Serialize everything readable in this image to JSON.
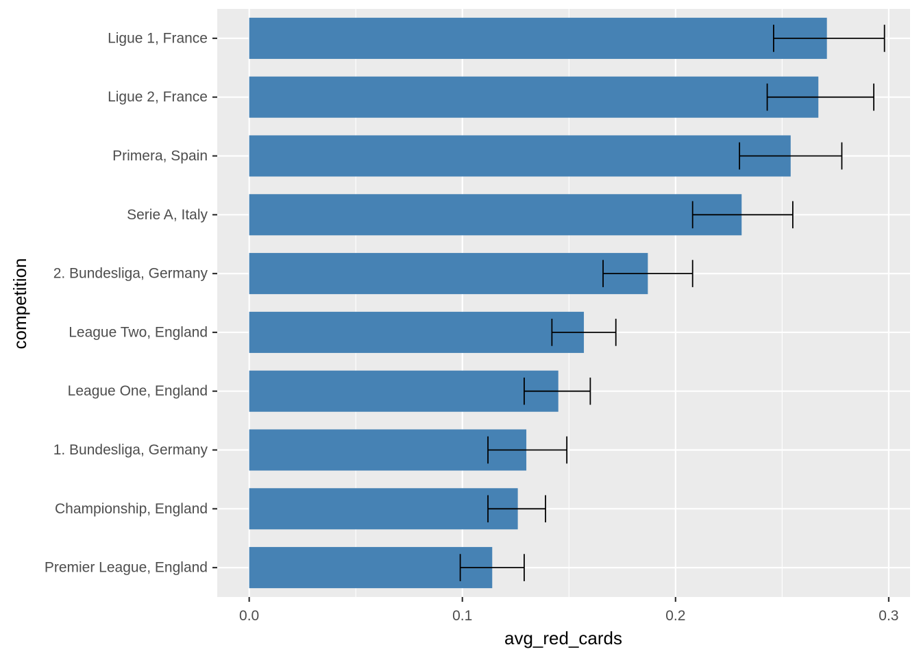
{
  "chart_data": {
    "type": "bar",
    "orientation": "horizontal",
    "title": "",
    "xlabel": "avg_red_cards",
    "ylabel": "competition",
    "xlim": [
      -0.015,
      0.31
    ],
    "x_ticks": [
      0.0,
      0.1,
      0.2,
      0.3
    ],
    "x_tick_labels": [
      "0.0",
      "0.1",
      "0.2",
      "0.3"
    ],
    "grid": true,
    "bar_color": "#4682B4",
    "panel_color": "#EBEBEB",
    "categories": [
      "Ligue 1, France",
      "Ligue 2, France",
      "Primera, Spain",
      "Serie A, Italy",
      "2. Bundesliga, Germany",
      "League Two, England",
      "League One, England",
      "1. Bundesliga, Germany",
      "Championship, England",
      "Premier League, England"
    ],
    "values": [
      0.271,
      0.267,
      0.254,
      0.231,
      0.187,
      0.157,
      0.145,
      0.13,
      0.126,
      0.114
    ],
    "error_low": [
      0.246,
      0.243,
      0.23,
      0.208,
      0.166,
      0.142,
      0.129,
      0.112,
      0.112,
      0.099
    ],
    "error_high": [
      0.298,
      0.293,
      0.278,
      0.255,
      0.208,
      0.172,
      0.16,
      0.149,
      0.139,
      0.129
    ]
  }
}
